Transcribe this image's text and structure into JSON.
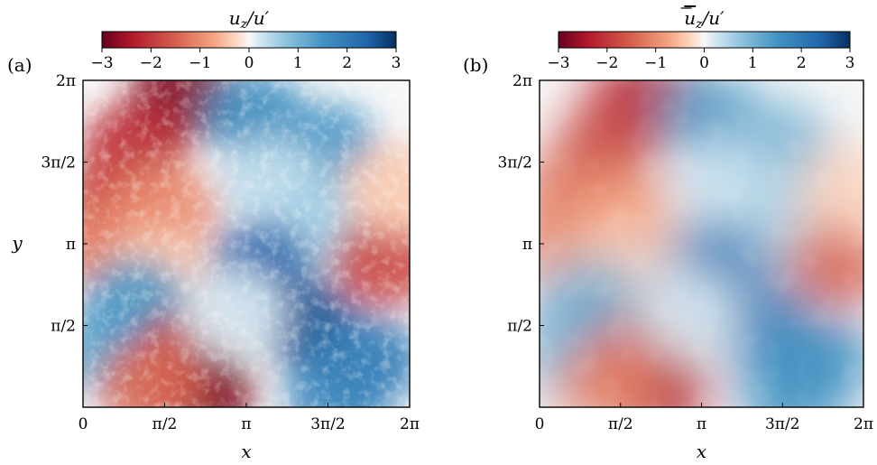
{
  "chart_data": [
    {
      "type": "heatmap",
      "panel_label": "(a)",
      "colorbar": {
        "label": "u_z/u′",
        "label_main": "u",
        "label_sub": "z",
        "label_rest": "/u′",
        "overline": false,
        "ticks": [
          "−3",
          "−2",
          "−1",
          "0",
          "1",
          "2",
          "3"
        ],
        "range": [
          -3,
          3
        ],
        "colormap": "RdBu"
      },
      "xlabel": "x",
      "ylabel": "y",
      "xlim": [
        0,
        6.2832
      ],
      "ylim": [
        0,
        6.2832
      ],
      "x_tick_labels": [
        "0",
        "π/2",
        "π",
        "3π/2",
        "2π"
      ],
      "y_tick_labels": [
        "π/2",
        "π",
        "3π/2",
        "2π"
      ],
      "field_regions": [
        {
          "x": 1.9,
          "y": 6.0,
          "value": -2.8
        },
        {
          "x": 1.0,
          "y": 5.0,
          "value": -2.2
        },
        {
          "x": 0.6,
          "y": 4.0,
          "value": -1.8
        },
        {
          "x": 0.5,
          "y": 3.1,
          "value": -1.2
        },
        {
          "x": 1.6,
          "y": 3.8,
          "value": -1.0
        },
        {
          "x": 1.4,
          "y": 2.6,
          "value": -0.4
        },
        {
          "x": 3.3,
          "y": 5.6,
          "value": 1.6
        },
        {
          "x": 4.7,
          "y": 5.0,
          "value": 1.4
        },
        {
          "x": 3.6,
          "y": 4.3,
          "value": 0.4
        },
        {
          "x": 4.7,
          "y": 3.5,
          "value": 0.6
        },
        {
          "x": 3.4,
          "y": 2.7,
          "value": 2.4
        },
        {
          "x": 4.3,
          "y": 1.6,
          "value": 2.6
        },
        {
          "x": 5.5,
          "y": 0.9,
          "value": 2.0
        },
        {
          "x": 5.8,
          "y": 2.8,
          "value": -1.8
        },
        {
          "x": 6.0,
          "y": 4.2,
          "value": -0.4
        },
        {
          "x": 0.5,
          "y": 1.1,
          "value": 1.2
        },
        {
          "x": 1.0,
          "y": 2.0,
          "value": 1.4
        },
        {
          "x": 2.0,
          "y": 1.0,
          "value": -2.0
        },
        {
          "x": 2.3,
          "y": 0.3,
          "value": -2.8
        },
        {
          "x": 1.3,
          "y": 0.4,
          "value": -1.4
        },
        {
          "x": 2.9,
          "y": 1.8,
          "value": 0.2
        },
        {
          "x": 4.9,
          "y": 0.2,
          "value": 1.8
        }
      ]
    },
    {
      "type": "heatmap",
      "panel_label": "(b)",
      "colorbar": {
        "label": "ū_z/u′",
        "label_main": "u",
        "label_sub": "z",
        "label_rest": "/u′",
        "overline": true,
        "ticks": [
          "−3",
          "−2",
          "−1",
          "0",
          "1",
          "2",
          "3"
        ],
        "range": [
          -3,
          3
        ],
        "colormap": "RdBu"
      },
      "xlabel": "x",
      "ylabel": "",
      "xlim": [
        0,
        6.2832
      ],
      "ylim": [
        0,
        6.2832
      ],
      "x_tick_labels": [
        "0",
        "π/2",
        "π",
        "3π/2",
        "2π"
      ],
      "y_tick_labels": [
        "π/2",
        "π",
        "3π/2",
        "2π"
      ],
      "field_regions": [
        {
          "x": 2.0,
          "y": 6.0,
          "value": -2.4
        },
        {
          "x": 1.3,
          "y": 5.0,
          "value": -1.9
        },
        {
          "x": 0.6,
          "y": 4.0,
          "value": -1.4
        },
        {
          "x": 0.5,
          "y": 3.1,
          "value": -1.0
        },
        {
          "x": 1.6,
          "y": 3.7,
          "value": -0.8
        },
        {
          "x": 1.4,
          "y": 2.6,
          "value": -0.3
        },
        {
          "x": 3.3,
          "y": 5.6,
          "value": 1.4
        },
        {
          "x": 4.7,
          "y": 5.0,
          "value": 1.0
        },
        {
          "x": 3.6,
          "y": 4.3,
          "value": 0.3
        },
        {
          "x": 4.7,
          "y": 3.5,
          "value": 0.5
        },
        {
          "x": 3.4,
          "y": 2.7,
          "value": 2.1
        },
        {
          "x": 4.3,
          "y": 1.6,
          "value": 1.9
        },
        {
          "x": 5.5,
          "y": 0.9,
          "value": 1.6
        },
        {
          "x": 5.8,
          "y": 2.8,
          "value": -1.5
        },
        {
          "x": 6.0,
          "y": 4.2,
          "value": -0.3
        },
        {
          "x": 0.5,
          "y": 1.1,
          "value": 0.9
        },
        {
          "x": 1.0,
          "y": 2.0,
          "value": 1.1
        },
        {
          "x": 2.0,
          "y": 1.0,
          "value": -1.7
        },
        {
          "x": 2.3,
          "y": 0.3,
          "value": -2.3
        },
        {
          "x": 1.3,
          "y": 0.4,
          "value": -1.1
        },
        {
          "x": 2.9,
          "y": 1.8,
          "value": 0.2
        },
        {
          "x": 4.9,
          "y": 0.2,
          "value": 1.5
        }
      ]
    }
  ]
}
